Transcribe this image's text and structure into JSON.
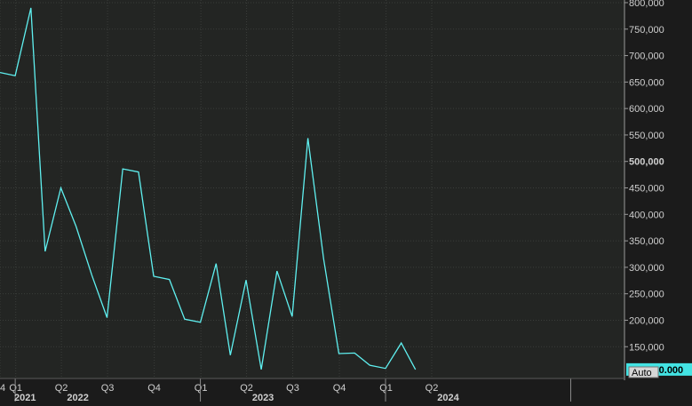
{
  "colors": {
    "background": "#1b1b1b",
    "plot_background": "#232523",
    "grid": "#3a3d3a",
    "line": "#5ff0f0",
    "tick_text": "#cfcfcf",
    "last_value_badge_bg": "#43e3e3",
    "last_value_badge_text": "#000000",
    "auto_badge_bg": "#d6d6d6"
  },
  "controls": {
    "auto_label": "Auto"
  },
  "chart_data": {
    "type": "line",
    "title": "",
    "xlabel": "",
    "ylabel": "",
    "x_range": [
      "2020-12-01",
      "2024-04-15"
    ],
    "ylim": [
      90000,
      805000
    ],
    "y_ticks": [
      {
        "value": 150000,
        "label": "150,000"
      },
      {
        "value": 200000,
        "label": "200,000"
      },
      {
        "value": 250000,
        "label": "250,000"
      },
      {
        "value": 300000,
        "label": "300,000"
      },
      {
        "value": 350000,
        "label": "350,000"
      },
      {
        "value": 400000,
        "label": "400,000"
      },
      {
        "value": 450000,
        "label": "450,000"
      },
      {
        "value": 500000,
        "label": "500,000",
        "bold": true
      },
      {
        "value": 550000,
        "label": "550,000"
      },
      {
        "value": 600000,
        "label": "600,000"
      },
      {
        "value": 650000,
        "label": "650,000"
      },
      {
        "value": 700000,
        "label": "700,000"
      },
      {
        "value": 750000,
        "label": "750,000"
      },
      {
        "value": 800000,
        "label": "800,000"
      }
    ],
    "x_quarter_ticks": [
      {
        "date": "2020-12-01",
        "label": "4"
      },
      {
        "date": "2021-01-01",
        "label": "Q1"
      },
      {
        "date": "2021-04-01",
        "label": "Q2"
      },
      {
        "date": "2021-07-01",
        "label": "Q3"
      },
      {
        "date": "2021-10-01",
        "label": "Q4"
      },
      {
        "date": "2022-01-01",
        "label": "Q1"
      },
      {
        "date": "2022-04-01",
        "label": "Q2"
      },
      {
        "date": "2022-07-01",
        "label": "Q3"
      },
      {
        "date": "2022-10-01",
        "label": "Q4"
      },
      {
        "date": "2023-01-01",
        "label": "Q1"
      },
      {
        "date": "2023-04-01",
        "label": "Q2"
      }
    ],
    "x_year_labels": [
      {
        "date": "2020-12-01",
        "label": "2021"
      },
      {
        "date": "2021-03-15",
        "label": "2022"
      },
      {
        "date": "2022-03-15",
        "label": "2023"
      },
      {
        "date": "2023-03-15",
        "label": "2024"
      }
    ],
    "year_dividers": [
      "2020-12-31",
      "2021-12-31",
      "2022-12-31",
      "2023-12-31"
    ],
    "series": [
      {
        "points": [
          {
            "x": "2020-12-01",
            "y": 668000
          },
          {
            "x": "2020-12-31",
            "y": 662000
          },
          {
            "x": "2021-01-31",
            "y": 790000
          },
          {
            "x": "2021-02-28",
            "y": 330000
          },
          {
            "x": "2021-03-31",
            "y": 450000
          },
          {
            "x": "2021-04-30",
            "y": 377000
          },
          {
            "x": "2021-05-31",
            "y": 285000
          },
          {
            "x": "2021-06-30",
            "y": 205000
          },
          {
            "x": "2021-07-31",
            "y": 486000
          },
          {
            "x": "2021-08-31",
            "y": 480000
          },
          {
            "x": "2021-09-30",
            "y": 283000
          },
          {
            "x": "2021-10-31",
            "y": 277000
          },
          {
            "x": "2021-11-30",
            "y": 202000
          },
          {
            "x": "2021-12-31",
            "y": 196000
          },
          {
            "x": "2022-01-31",
            "y": 307000
          },
          {
            "x": "2022-02-28",
            "y": 134000
          },
          {
            "x": "2022-03-31",
            "y": 276000
          },
          {
            "x": "2022-04-30",
            "y": 107000
          },
          {
            "x": "2022-05-31",
            "y": 293000
          },
          {
            "x": "2022-06-30",
            "y": 207000
          },
          {
            "x": "2022-07-31",
            "y": 544000
          },
          {
            "x": "2022-08-31",
            "y": 316000
          },
          {
            "x": "2022-09-30",
            "y": 137000
          },
          {
            "x": "2022-10-31",
            "y": 138000
          },
          {
            "x": "2022-11-30",
            "y": 115000
          },
          {
            "x": "2022-12-31",
            "y": 109000
          },
          {
            "x": "2023-01-31",
            "y": 157000
          },
          {
            "x": "2023-02-28",
            "y": 107000
          }
        ]
      }
    ],
    "last_value_label": "107,000.000",
    "grid": true,
    "legend": "none"
  }
}
